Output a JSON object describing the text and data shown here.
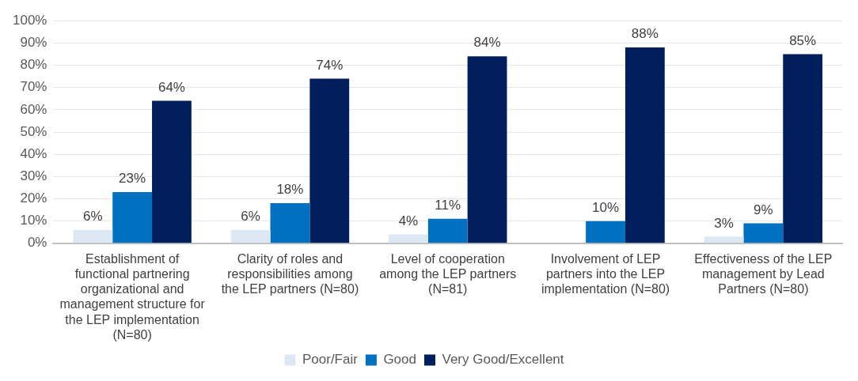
{
  "chart_data": {
    "type": "bar",
    "categories": [
      "Establishment of functional partnering organizational and management structure for the LEP implementation (N=80)",
      "Clarity of roles and responsibilities among the LEP partners (N=80)",
      "Level of cooperation among the LEP partners (N=81)",
      "Involvement of LEP partners into the LEP implementation (N=80)",
      "Effectiveness of the LEP management by Lead Partners (N=80)"
    ],
    "series": [
      {
        "name": "Poor/Fair",
        "color": "#dde8f5",
        "values": [
          6,
          6,
          4,
          null,
          3
        ],
        "value_labels": [
          "6%",
          "6%",
          "4%",
          null,
          "3%"
        ]
      },
      {
        "name": "Good",
        "color": "#0070c0",
        "values": [
          23,
          18,
          11,
          10,
          9
        ],
        "value_labels": [
          "23%",
          "18%",
          "11%",
          "10%",
          "9%"
        ]
      },
      {
        "name": "Very Good/Excellent",
        "color": "#001f5c",
        "values": [
          64,
          74,
          84,
          88,
          85
        ],
        "value_labels": [
          "64%",
          "74%",
          "84%",
          "88%",
          "85%"
        ]
      }
    ],
    "ylim": [
      0,
      100
    ],
    "yticks": [
      {
        "value": 0,
        "label": "0%"
      },
      {
        "value": 10,
        "label": "10%"
      },
      {
        "value": 20,
        "label": "20%"
      },
      {
        "value": 30,
        "label": "30%"
      },
      {
        "value": 40,
        "label": "40%"
      },
      {
        "value": 50,
        "label": "50%"
      },
      {
        "value": 60,
        "label": "60%"
      },
      {
        "value": 70,
        "label": "70%"
      },
      {
        "value": 80,
        "label": "80%"
      },
      {
        "value": 90,
        "label": "90%"
      },
      {
        "value": 100,
        "label": "100%"
      }
    ],
    "grid": "y",
    "legend": "bottom"
  }
}
